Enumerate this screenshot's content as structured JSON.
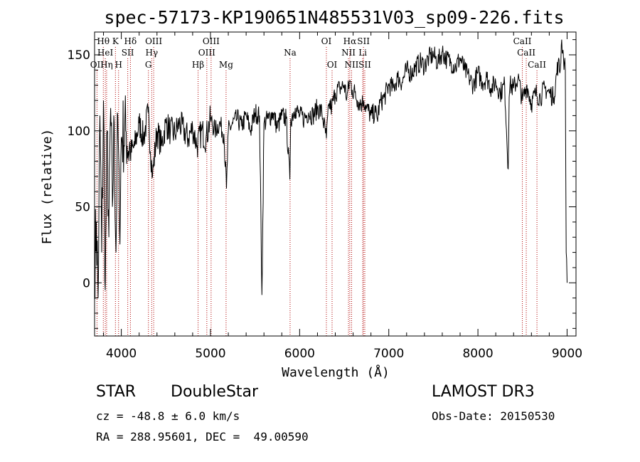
{
  "chart_data": {
    "type": "line",
    "title": "spec-57173-KP190651N485531V03_sp09-226.fits",
    "xlabel": "Wavelength (Å)",
    "ylabel": "Flux (relative)",
    "xlim": [
      3700,
      9100
    ],
    "ylim": [
      -35,
      165
    ],
    "xticks": [
      4000,
      5000,
      6000,
      7000,
      8000,
      9000
    ],
    "xtick_labels": [
      "4000",
      "5000",
      "6000",
      "7000",
      "8000",
      "9000"
    ],
    "yticks": [
      0,
      50,
      100,
      150
    ],
    "ytick_labels": [
      "0",
      "50",
      "100",
      "150"
    ],
    "series": [
      {
        "name": "flux",
        "x": [
          3700,
          3720,
          3740,
          3760,
          3780,
          3800,
          3820,
          3840,
          3860,
          3880,
          3900,
          3920,
          3940,
          3960,
          3980,
          4000,
          4050,
          4100,
          4150,
          4200,
          4250,
          4300,
          4350,
          4400,
          4450,
          4500,
          4550,
          4600,
          4650,
          4700,
          4750,
          4800,
          4850,
          4900,
          4950,
          5000,
          5050,
          5100,
          5150,
          5180,
          5200,
          5250,
          5300,
          5350,
          5400,
          5450,
          5500,
          5550,
          5577,
          5600,
          5650,
          5700,
          5750,
          5800,
          5850,
          5890,
          5900,
          5950,
          6000,
          6050,
          6100,
          6150,
          6200,
          6250,
          6300,
          6330,
          6360,
          6400,
          6450,
          6500,
          6530,
          6563,
          6590,
          6620,
          6650,
          6700,
          6720,
          6750,
          6800,
          6850,
          6870,
          6900,
          6950,
          7000,
          7050,
          7100,
          7150,
          7200,
          7250,
          7300,
          7350,
          7400,
          7450,
          7500,
          7550,
          7600,
          7650,
          7700,
          7750,
          7800,
          7850,
          7900,
          7950,
          8000,
          8050,
          8100,
          8150,
          8200,
          8250,
          8300,
          8340,
          8350,
          8360,
          8400,
          8450,
          8500,
          8550,
          8600,
          8650,
          8700,
          8750,
          8800,
          8850,
          8900,
          8920,
          8940,
          8960,
          8980,
          8990,
          9000
        ],
        "y": [
          10,
          40,
          -10,
          110,
          20,
          120,
          -5,
          100,
          30,
          115,
          50,
          105,
          20,
          110,
          35,
          95,
          100,
          85,
          90,
          105,
          95,
          112,
          70,
          100,
          90,
          105,
          100,
          98,
          105,
          100,
          95,
          102,
          90,
          100,
          95,
          108,
          100,
          105,
          98,
          62,
          100,
          105,
          108,
          103,
          110,
          100,
          112,
          110,
          -8,
          105,
          108,
          112,
          102,
          110,
          108,
          68,
          108,
          115,
          110,
          108,
          112,
          110,
          115,
          112,
          95,
          118,
          115,
          125,
          128,
          130,
          122,
          133,
          127,
          125,
          120,
          118,
          120,
          115,
          110,
          112,
          108,
          118,
          122,
          130,
          128,
          135,
          132,
          140,
          138,
          142,
          145,
          143,
          148,
          150,
          145,
          152,
          147,
          145,
          142,
          148,
          140,
          135,
          130,
          138,
          132,
          135,
          128,
          132,
          125,
          130,
          75,
          122,
          130,
          128,
          135,
          120,
          130,
          118,
          125,
          122,
          128,
          125,
          122,
          145,
          138,
          160,
          148,
          140,
          20,
          0
        ]
      }
    ],
    "line_markers": [
      {
        "label": "Hθ",
        "x": 3798,
        "row": 1
      },
      {
        "label": "OII",
        "x": 3727,
        "row": 3
      },
      {
        "label": "HeI",
        "x": 3820,
        "row": 2
      },
      {
        "label": "Hη",
        "x": 3835,
        "row": 3
      },
      {
        "label": "K",
        "x": 3934,
        "row": 1
      },
      {
        "label": "H",
        "x": 3969,
        "row": 3
      },
      {
        "label": "SII",
        "x": 4072,
        "row": 2
      },
      {
        "label": "Hδ",
        "x": 4102,
        "row": 1
      },
      {
        "label": "OIII",
        "x": 4363,
        "row": 1
      },
      {
        "label": "Hγ",
        "x": 4341,
        "row": 2
      },
      {
        "label": "G",
        "x": 4304,
        "row": 3
      },
      {
        "label": "OIII",
        "x": 5007,
        "row": 1
      },
      {
        "label": "OIII",
        "x": 4959,
        "row": 2
      },
      {
        "label": "Hβ",
        "x": 4861,
        "row": 3
      },
      {
        "label": "Mg",
        "x": 5175,
        "row": 3
      },
      {
        "label": "Na",
        "x": 5893,
        "row": 2
      },
      {
        "label": "OI",
        "x": 6300,
        "row": 1
      },
      {
        "label": "OI",
        "x": 6364,
        "row": 3
      },
      {
        "label": "Hα",
        "x": 6563,
        "row": 1
      },
      {
        "label": "NII",
        "x": 6548,
        "row": 2
      },
      {
        "label": "NII",
        "x": 6583,
        "row": 3
      },
      {
        "label": "SII",
        "x": 6716,
        "row": 1
      },
      {
        "label": "Li",
        "x": 6708,
        "row": 2
      },
      {
        "label": "SII",
        "x": 6731,
        "row": 3
      },
      {
        "label": "CaII",
        "x": 8498,
        "row": 1
      },
      {
        "label": "CaII",
        "x": 8542,
        "row": 2
      },
      {
        "label": "CaII",
        "x": 8662,
        "row": 3
      }
    ],
    "grid": false,
    "colors": {
      "line": "#000000",
      "marker": "#b00000",
      "axes": "#000000"
    }
  },
  "info": {
    "class": "STAR",
    "subclass": "DoubleStar",
    "survey": "LAMOST DR3",
    "redshift": "cz = -48.8 ± 6.0 km/s",
    "obs_date": "Obs-Date: 20150530",
    "coords": "RA = 288.95601, DEC =  49.00590"
  }
}
